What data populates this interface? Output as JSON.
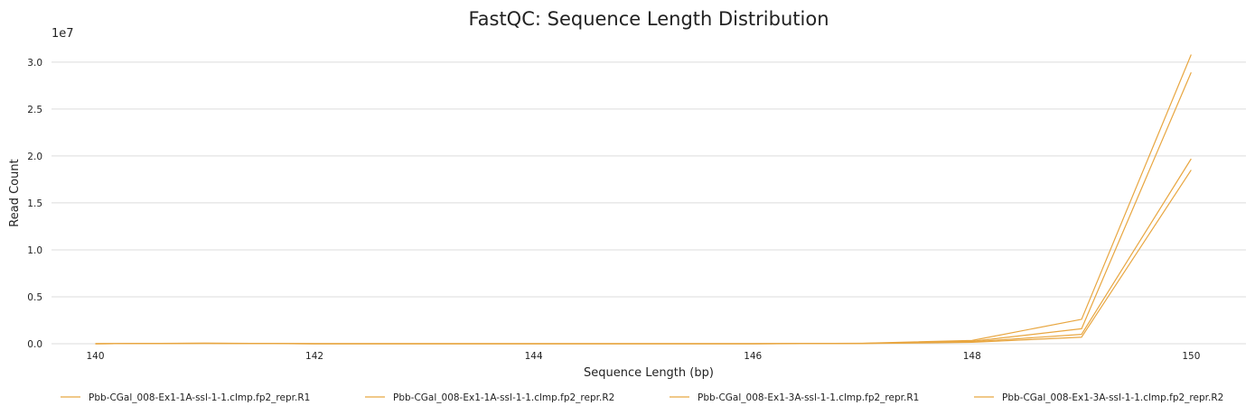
{
  "chart_data": {
    "type": "line",
    "title": "FastQC: Sequence Length Distribution",
    "xlabel": "Sequence Length (bp)",
    "ylabel": "Read Count",
    "y_multiplier_label": "1e7",
    "xlim": [
      139.6,
      150.5
    ],
    "ylim": [
      0,
      32000000
    ],
    "x_ticks": [
      140,
      142,
      144,
      146,
      148,
      150
    ],
    "y_ticks": [
      0,
      5000000,
      10000000,
      15000000,
      20000000,
      25000000,
      30000000
    ],
    "y_tick_labels": [
      "0.0",
      "0.5",
      "1.0",
      "1.5",
      "2.0",
      "2.5",
      "3.0"
    ],
    "grid": true,
    "legend_position": "bottom",
    "color": "#e8a640",
    "x": [
      140,
      141,
      142,
      143,
      144,
      145,
      146,
      147,
      148,
      149,
      150
    ],
    "series": [
      {
        "name": "Pbb-CGal_008-Ex1-1A-ssl-1-1.clmp.fp2_repr.R1",
        "values": [
          0,
          60000,
          0,
          0,
          0,
          0,
          0,
          50000,
          350000,
          2600000,
          30800000
        ]
      },
      {
        "name": "Pbb-CGal_008-Ex1-1A-ssl-1-1.clmp.fp2_repr.R2",
        "values": [
          0,
          50000,
          0,
          0,
          0,
          0,
          0,
          40000,
          250000,
          1600000,
          28900000
        ]
      },
      {
        "name": "Pbb-CGal_008-Ex1-3A-ssl-1-1.clmp.fp2_repr.R1",
        "values": [
          0,
          40000,
          0,
          0,
          0,
          0,
          0,
          30000,
          200000,
          1000000,
          19700000
        ]
      },
      {
        "name": "Pbb-CGal_008-Ex1-3A-ssl-1-1.clmp.fp2_repr.R2",
        "values": [
          0,
          30000,
          0,
          0,
          0,
          0,
          0,
          20000,
          150000,
          700000,
          18500000
        ]
      }
    ]
  }
}
